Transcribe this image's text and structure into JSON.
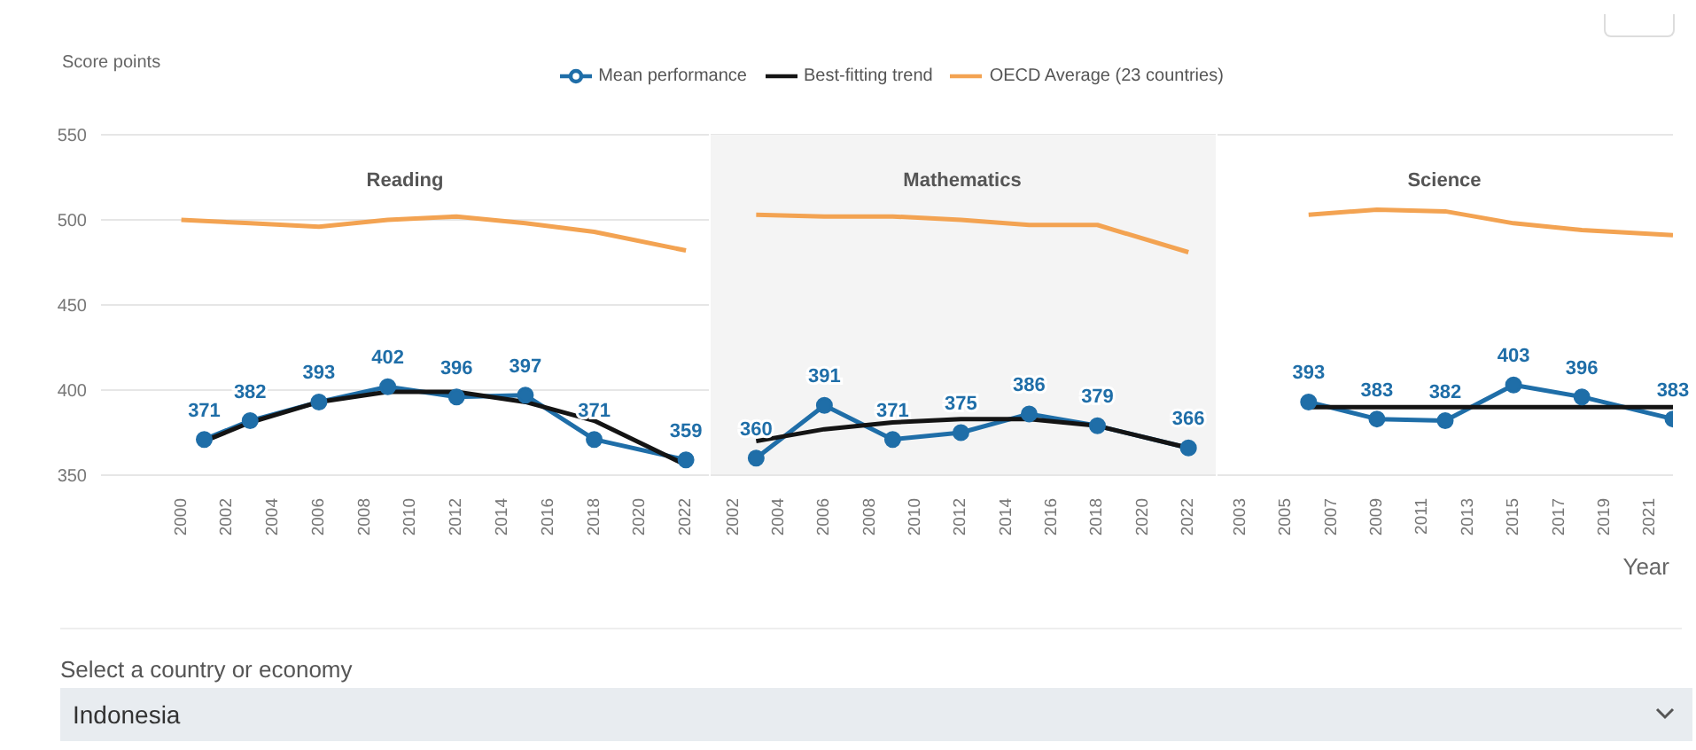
{
  "chart_data": [
    {
      "type": "line",
      "title": "Reading",
      "ylabel": "Score points",
      "ylim": [
        350,
        550
      ],
      "yticks": [
        350,
        400,
        450,
        500,
        550
      ],
      "xlim": [
        1996.5,
        2023
      ],
      "xticks": [
        2000,
        2002,
        2004,
        2006,
        2008,
        2010,
        2012,
        2014,
        2016,
        2018,
        2020,
        2022
      ],
      "grid": "y",
      "legend": "top",
      "annotations": [
        "Select a country or economy",
        "Indonesia"
      ],
      "series": [
        {
          "name": "Mean performance",
          "color": "#1f6ea8",
          "marker": "circle",
          "x": [
            2001,
            2003,
            2006,
            2009,
            2012,
            2015,
            2018,
            2022
          ],
          "values": [
            371,
            382,
            393,
            402,
            396,
            397,
            371,
            359
          ],
          "value_labels": [
            "371",
            "382",
            "393",
            "402",
            "396",
            "397",
            "371",
            "359"
          ]
        },
        {
          "name": "Best-fitting trend",
          "color": "#141414",
          "marker": "none",
          "x": [
            2001,
            2003,
            2006,
            2009,
            2012,
            2015,
            2018,
            2022
          ],
          "values": [
            370,
            381,
            393,
            399,
            399,
            393,
            382,
            356
          ]
        },
        {
          "name": "OECD Average (23 countries)",
          "color": "#f3a352",
          "marker": "none",
          "x": [
            2000,
            2003,
            2006,
            2009,
            2012,
            2015,
            2018,
            2022
          ],
          "values": [
            500,
            498,
            496,
            500,
            502,
            498,
            493,
            482
          ]
        }
      ]
    },
    {
      "type": "line",
      "title": "Mathematics",
      "ylim": [
        350,
        550
      ],
      "yticks": [
        350,
        400,
        450,
        500,
        550
      ],
      "xlim": [
        2001,
        2023.2
      ],
      "xticks": [
        2002,
        2004,
        2006,
        2008,
        2010,
        2012,
        2014,
        2016,
        2018,
        2020,
        2022
      ],
      "grid": "y",
      "tick_labels": "x",
      "bands": [
        {
          "axis": "x",
          "from": 2001,
          "to": 2023.2,
          "color": "#f4f4f4"
        }
      ],
      "series": [
        {
          "color": "#1f6ea8",
          "marker": "circle",
          "x": [
            2003,
            2006,
            2009,
            2012,
            2015,
            2018,
            2022
          ],
          "values": [
            360,
            391,
            371,
            375,
            386,
            379,
            366
          ],
          "value_labels": [
            "360",
            "391",
            "371",
            "375",
            "386",
            "379",
            "366"
          ]
        },
        {
          "color": "#141414",
          "marker": "none",
          "x": [
            2003,
            2006,
            2009,
            2012,
            2015,
            2018,
            2022
          ],
          "values": [
            370,
            377,
            381,
            383,
            383,
            379,
            366
          ]
        },
        {
          "color": "#f3a352",
          "marker": "none",
          "x": [
            2003,
            2006,
            2009,
            2012,
            2015,
            2018,
            2022
          ],
          "values": [
            503,
            502,
            502,
            500,
            497,
            497,
            481
          ]
        }
      ]
    },
    {
      "type": "line",
      "title": "Science",
      "xlabel": "Year",
      "ylim": [
        350,
        550
      ],
      "yticks": [
        350,
        400,
        450,
        500,
        550
      ],
      "xlim": [
        2002,
        2022
      ],
      "xticks": [
        2003,
        2005,
        2007,
        2009,
        2011,
        2013,
        2015,
        2017,
        2019,
        2021
      ],
      "grid": "y",
      "tick_labels": "x",
      "series": [
        {
          "color": "#1f6ea8",
          "marker": "circle",
          "x": [
            2006,
            2009,
            2012,
            2015,
            2018,
            2022
          ],
          "values": [
            393,
            383,
            382,
            403,
            396,
            383
          ],
          "value_labels": [
            "393",
            "383",
            "382",
            "403",
            "396",
            "383"
          ]
        },
        {
          "color": "#141414",
          "marker": "none",
          "x": [
            2006,
            2022
          ],
          "values": [
            390,
            390
          ]
        },
        {
          "color": "#f3a352",
          "marker": "none",
          "x": [
            2006,
            2009,
            2012,
            2015,
            2018,
            2022
          ],
          "values": [
            503,
            506,
            505,
            498,
            494,
            491
          ]
        }
      ]
    }
  ]
}
